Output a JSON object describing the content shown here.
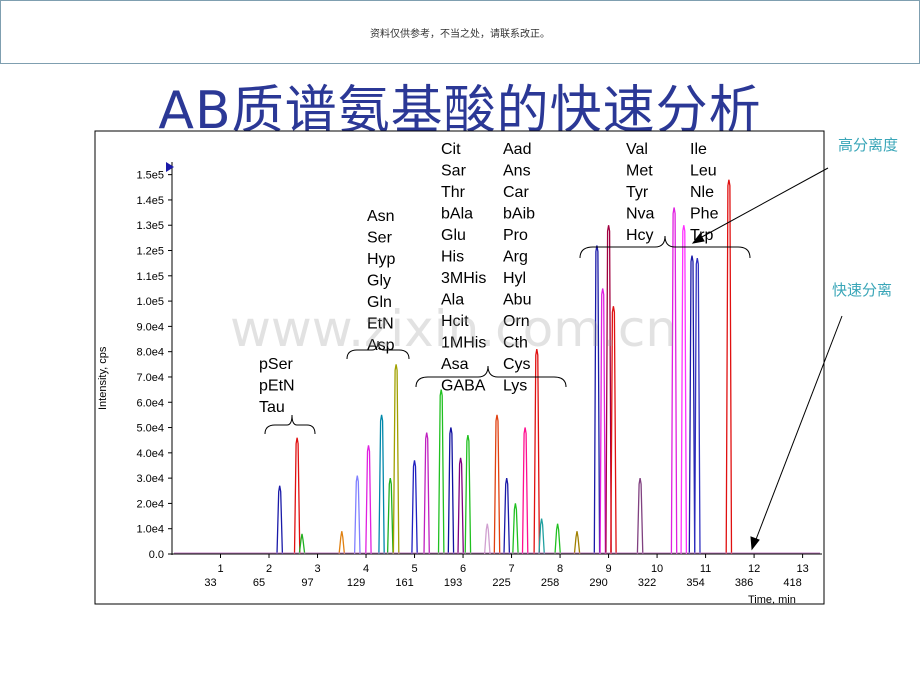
{
  "header": {
    "disclaimer": "资料仅供参考，不当之处，请联系改正。"
  },
  "title": "AB质谱氨基酸的快速分析",
  "annotations": {
    "high_resolution": "高分离度",
    "fast_separation": "快速分离"
  },
  "watermark": "www.zixin.com.cn",
  "colors": {
    "title": "#2b3896",
    "annotation": "#3aa6b8"
  },
  "chart_data": {
    "type": "line",
    "ylabel": "Intensity, cps",
    "xlabel": "Time, min",
    "xlim": [
      0,
      13.4
    ],
    "ylim": [
      0,
      155000
    ],
    "y_ticks": [
      "0.0",
      "1.0e4",
      "2.0e4",
      "3.0e4",
      "4.0e4",
      "5.0e4",
      "6.0e4",
      "7.0e4",
      "8.0e4",
      "9.0e4",
      "1.0e5",
      "1.1e5",
      "1.2e5",
      "1.3e5",
      "1.4e5",
      "1.5e5"
    ],
    "x_ticks": [
      {
        "time": "1",
        "scan": "33"
      },
      {
        "time": "2",
        "scan": "65"
      },
      {
        "time": "3",
        "scan": "97"
      },
      {
        "time": "4",
        "scan": "129"
      },
      {
        "time": "5",
        "scan": "161"
      },
      {
        "time": "6",
        "scan": "193"
      },
      {
        "time": "7",
        "scan": "225"
      },
      {
        "time": "8",
        "scan": "258"
      },
      {
        "time": "9",
        "scan": "290"
      },
      {
        "time": "10",
        "scan": "322"
      },
      {
        "time": "11",
        "scan": "354"
      },
      {
        "time": "12",
        "scan": "386"
      },
      {
        "time": "13",
        "scan": "418"
      }
    ],
    "groups": [
      {
        "name": "g1",
        "labels": [
          "pSer",
          "pEtN",
          "Tau"
        ]
      },
      {
        "name": "g2",
        "labels": [
          "Asn",
          "Ser",
          "Hyp",
          "Gly",
          "Gln",
          "EtN",
          "Asp"
        ]
      },
      {
        "name": "g3a",
        "labels": [
          "Cit",
          "Sar",
          "Thr",
          "bAla",
          "Glu",
          "His",
          "3MHis",
          "Ala",
          "Hcit",
          "1MHis",
          "Asa",
          "GABA"
        ]
      },
      {
        "name": "g3b",
        "labels": [
          "Aad",
          "Ans",
          "Car",
          "bAib",
          "Pro",
          "Arg",
          "Hyl",
          "Abu",
          "Orn",
          "Cth",
          "Cys",
          "Lys"
        ]
      },
      {
        "name": "g4a",
        "labels": [
          "Val",
          "Met",
          "Tyr",
          "Nva",
          "Hcy"
        ]
      },
      {
        "name": "g4b",
        "labels": [
          "Ile",
          "Leu",
          "Nle",
          "Phe",
          "Trp"
        ]
      }
    ],
    "peaks": [
      {
        "t": 2.22,
        "h": 27000,
        "color": "#1a1aa8"
      },
      {
        "t": 2.58,
        "h": 46000,
        "color": "#e01010"
      },
      {
        "t": 2.68,
        "h": 8000,
        "color": "#20b020"
      },
      {
        "t": 3.5,
        "h": 9000,
        "color": "#e08010"
      },
      {
        "t": 3.82,
        "h": 31000,
        "color": "#8080ff"
      },
      {
        "t": 4.05,
        "h": 43000,
        "color": "#e020e0"
      },
      {
        "t": 4.32,
        "h": 55000,
        "color": "#0088aa"
      },
      {
        "t": 4.5,
        "h": 30000,
        "color": "#20b020"
      },
      {
        "t": 4.62,
        "h": 75000,
        "color": "#a0a000"
      },
      {
        "t": 5.0,
        "h": 37000,
        "color": "#2020c0"
      },
      {
        "t": 5.25,
        "h": 48000,
        "color": "#c020c0"
      },
      {
        "t": 5.55,
        "h": 65000,
        "color": "#20c020"
      },
      {
        "t": 5.75,
        "h": 50000,
        "color": "#1010a0"
      },
      {
        "t": 5.95,
        "h": 38000,
        "color": "#800080"
      },
      {
        "t": 6.1,
        "h": 47000,
        "color": "#20c020"
      },
      {
        "t": 6.5,
        "h": 12000,
        "color": "#d0a0d0"
      },
      {
        "t": 6.7,
        "h": 55000,
        "color": "#e04010"
      },
      {
        "t": 6.9,
        "h": 30000,
        "color": "#1a1aa8"
      },
      {
        "t": 7.08,
        "h": 20000,
        "color": "#20c020"
      },
      {
        "t": 7.28,
        "h": 50000,
        "color": "#ff1090"
      },
      {
        "t": 7.52,
        "h": 81000,
        "color": "#e01010"
      },
      {
        "t": 7.62,
        "h": 14000,
        "color": "#20a0a0"
      },
      {
        "t": 7.95,
        "h": 12000,
        "color": "#20c020"
      },
      {
        "t": 8.35,
        "h": 9000,
        "color": "#a08000"
      },
      {
        "t": 8.76,
        "h": 122000,
        "color": "#1a1aa8"
      },
      {
        "t": 8.88,
        "h": 105000,
        "color": "#e020e0"
      },
      {
        "t": 9.0,
        "h": 130000,
        "color": "#a00040"
      },
      {
        "t": 9.1,
        "h": 98000,
        "color": "#e01010"
      },
      {
        "t": 9.65,
        "h": 30000,
        "color": "#804080"
      },
      {
        "t": 10.35,
        "h": 137000,
        "color": "#e020e0"
      },
      {
        "t": 10.55,
        "h": 130000,
        "color": "#ff30ff"
      },
      {
        "t": 10.72,
        "h": 118000,
        "color": "#1a1aa8"
      },
      {
        "t": 10.83,
        "h": 117000,
        "color": "#3030c0"
      },
      {
        "t": 11.48,
        "h": 148000,
        "color": "#e01010"
      }
    ]
  }
}
